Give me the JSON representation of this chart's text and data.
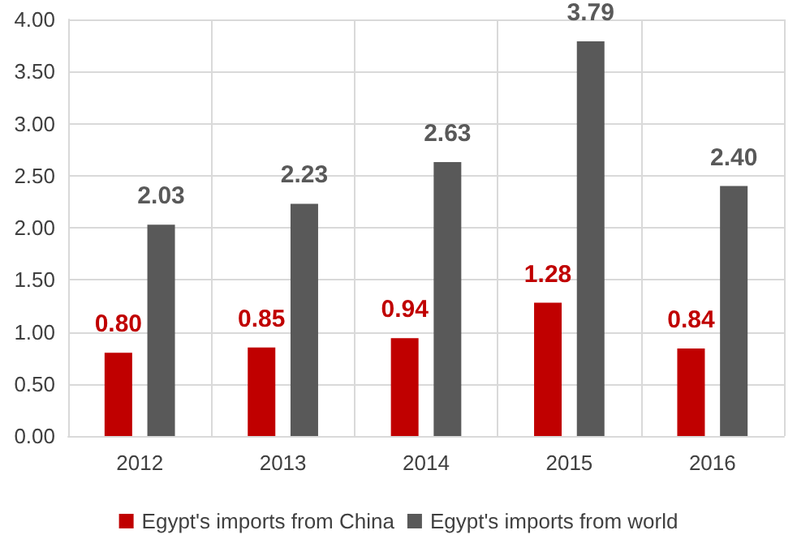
{
  "chart_data": {
    "type": "bar",
    "categories": [
      "2012",
      "2013",
      "2014",
      "2015",
      "2016"
    ],
    "series": [
      {
        "name": "Egypt's imports from China",
        "color": "#c00000",
        "values": [
          0.8,
          0.85,
          0.94,
          1.28,
          0.84
        ],
        "value_labels": [
          "0.80",
          "0.85",
          "0.94",
          "1.28",
          "0.84"
        ]
      },
      {
        "name": "Egypt's imports from world",
        "color": "#595959",
        "values": [
          2.03,
          2.23,
          2.63,
          3.79,
          2.4
        ],
        "value_labels": [
          "2.03",
          "2.23",
          "2.63",
          "3.79",
          "2.40"
        ]
      }
    ],
    "ylim": [
      0,
      4
    ],
    "yticks": [
      {
        "value": 0,
        "label": "0.00"
      },
      {
        "value": 0.5,
        "label": "0.50"
      },
      {
        "value": 1,
        "label": "1.00"
      },
      {
        "value": 1.5,
        "label": "1.50"
      },
      {
        "value": 2,
        "label": "2.00"
      },
      {
        "value": 2.5,
        "label": "2.50"
      },
      {
        "value": 3,
        "label": "3.00"
      },
      {
        "value": 3.5,
        "label": "3.50"
      },
      {
        "value": 4,
        "label": "4.00"
      }
    ],
    "grid": true,
    "legend": "bottom"
  }
}
